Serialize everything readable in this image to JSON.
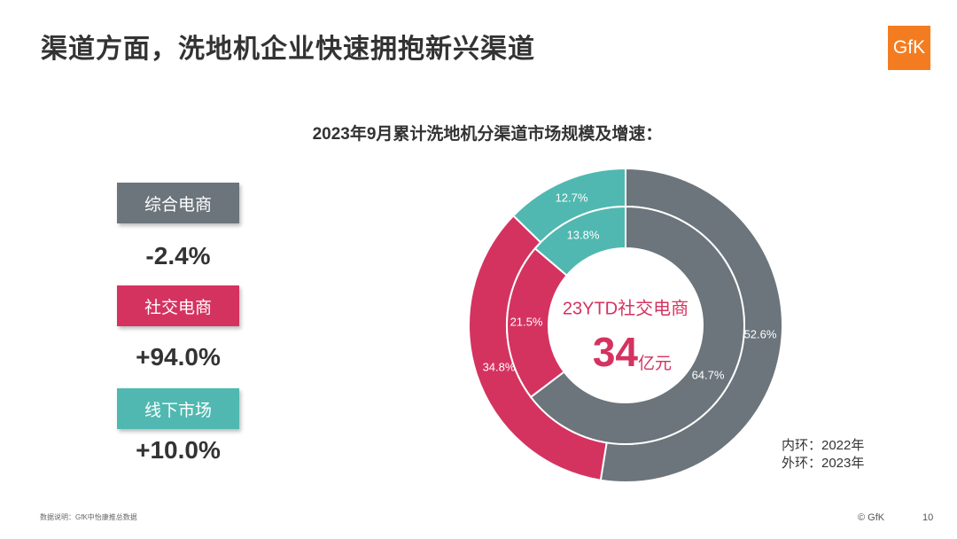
{
  "page": {
    "title": "渠道方面，洗地机企业快速拥抱新兴渠道",
    "logo": "GfK",
    "footnote": "数据说明：GfK中怡康推总数据",
    "copyright": "© GfK",
    "page_number": "10"
  },
  "channels": [
    {
      "label": "综合电商",
      "growth": "-2.4%",
      "color": "#6b757b"
    },
    {
      "label": "社交电商",
      "growth": "+94.0%",
      "color": "#d43360"
    },
    {
      "label": "线下市场",
      "growth": "+10.0%",
      "color": "#50b8b0"
    }
  ],
  "center": {
    "label": "23YTD社交电商",
    "value": "34",
    "unit": "亿元"
  },
  "ring_legend": {
    "inner": "内环：2022年",
    "outer": "外环：2023年"
  },
  "chart_data": {
    "type": "donut",
    "title": "2023年9月累计洗地机分渠道市场规模及增速：",
    "categories": [
      "综合电商",
      "社交电商",
      "线下市场"
    ],
    "colors": [
      "#6b757b",
      "#d43360",
      "#50b8b0"
    ],
    "series": [
      {
        "ring": "outer",
        "values": [
          52.6,
          34.8,
          12.7
        ],
        "labels": [
          "52.6%",
          "34.8%",
          "12.7%"
        ]
      },
      {
        "ring": "inner",
        "values": [
          64.7,
          21.5,
          13.8
        ],
        "labels": [
          "64.7%",
          "21.5%",
          "13.8%"
        ]
      }
    ]
  }
}
